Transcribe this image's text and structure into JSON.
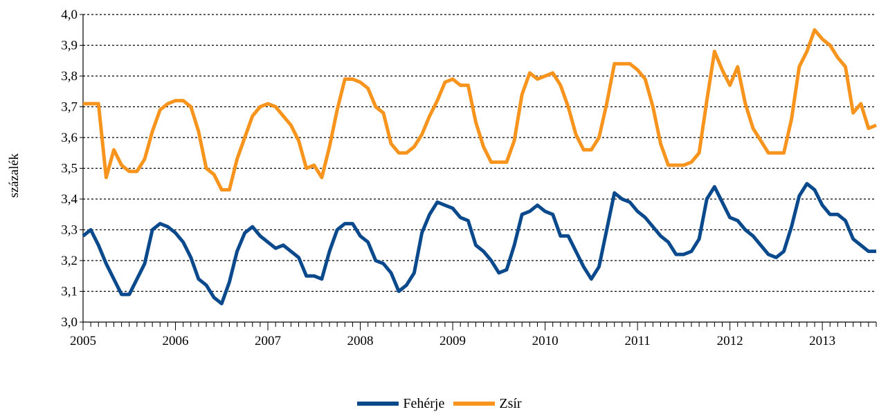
{
  "chart_data": {
    "type": "line",
    "ylabel": "százalék",
    "ylim": [
      3.0,
      4.0
    ],
    "y_ticks": [
      "3,0",
      "3,1",
      "3,2",
      "3,3",
      "3,4",
      "3,5",
      "3,6",
      "3,7",
      "3,8",
      "3,9",
      "4,0"
    ],
    "x_year_labels": [
      "2005",
      "2006",
      "2007",
      "2008",
      "2009",
      "2010",
      "2011",
      "2012",
      "2013"
    ],
    "grid": "horizontal-dotted",
    "legend_position": "bottom",
    "series": [
      {
        "name": "Fehérje",
        "color": "#0a4a8c",
        "values": [
          3.28,
          3.3,
          3.25,
          3.19,
          3.14,
          3.09,
          3.09,
          3.14,
          3.19,
          3.3,
          3.32,
          3.31,
          3.29,
          3.26,
          3.21,
          3.14,
          3.12,
          3.08,
          3.06,
          3.13,
          3.23,
          3.29,
          3.31,
          3.28,
          3.26,
          3.24,
          3.25,
          3.23,
          3.21,
          3.15,
          3.15,
          3.14,
          3.23,
          3.3,
          3.32,
          3.32,
          3.28,
          3.26,
          3.2,
          3.19,
          3.16,
          3.1,
          3.12,
          3.16,
          3.29,
          3.35,
          3.39,
          3.38,
          3.37,
          3.34,
          3.33,
          3.25,
          3.23,
          3.2,
          3.16,
          3.17,
          3.25,
          3.35,
          3.36,
          3.38,
          3.36,
          3.35,
          3.28,
          3.28,
          3.23,
          3.18,
          3.14,
          3.18,
          3.3,
          3.42,
          3.4,
          3.39,
          3.36,
          3.34,
          3.31,
          3.28,
          3.26,
          3.22,
          3.22,
          3.23,
          3.27,
          3.4,
          3.44,
          3.39,
          3.34,
          3.33,
          3.3,
          3.28,
          3.25,
          3.22,
          3.21,
          3.23,
          3.31,
          3.41,
          3.45,
          3.43,
          3.38,
          3.35,
          3.35,
          3.33,
          3.27,
          3.25,
          3.23,
          3.23
        ]
      },
      {
        "name": "Zsír",
        "color": "#f7941d",
        "values": [
          3.71,
          3.71,
          3.71,
          3.47,
          3.56,
          3.51,
          3.49,
          3.49,
          3.53,
          3.62,
          3.69,
          3.71,
          3.72,
          3.72,
          3.7,
          3.62,
          3.5,
          3.48,
          3.43,
          3.43,
          3.53,
          3.6,
          3.67,
          3.7,
          3.71,
          3.7,
          3.67,
          3.64,
          3.59,
          3.5,
          3.51,
          3.47,
          3.57,
          3.69,
          3.79,
          3.79,
          3.78,
          3.76,
          3.7,
          3.68,
          3.58,
          3.55,
          3.55,
          3.57,
          3.61,
          3.67,
          3.72,
          3.78,
          3.79,
          3.77,
          3.77,
          3.65,
          3.57,
          3.52,
          3.52,
          3.52,
          3.59,
          3.74,
          3.81,
          3.79,
          3.8,
          3.81,
          3.77,
          3.7,
          3.61,
          3.56,
          3.56,
          3.6,
          3.71,
          3.84,
          3.84,
          3.84,
          3.82,
          3.79,
          3.7,
          3.58,
          3.51,
          3.51,
          3.51,
          3.52,
          3.55,
          3.72,
          3.88,
          3.82,
          3.77,
          3.83,
          3.71,
          3.63,
          3.59,
          3.55,
          3.55,
          3.55,
          3.66,
          3.83,
          3.88,
          3.95,
          3.92,
          3.9,
          3.86,
          3.83,
          3.68,
          3.71,
          3.63,
          3.64
        ]
      }
    ]
  }
}
